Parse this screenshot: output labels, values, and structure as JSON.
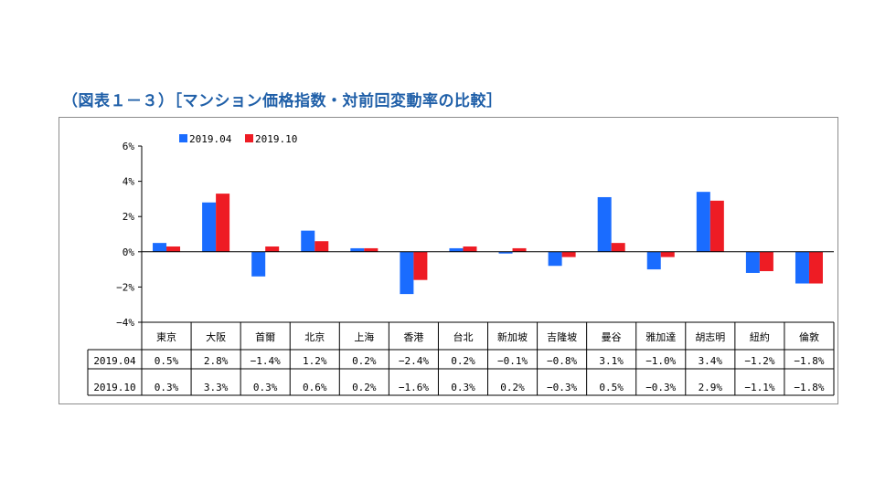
{
  "title": "（図表１－３）［マンション価格指数・対前回変動率の比較］",
  "colors": {
    "s1": "#1a6cff",
    "s2": "#ee1c24",
    "title": "#1f5fa8"
  },
  "chart_data": {
    "type": "bar",
    "categories": [
      "東京",
      "大阪",
      "首爾",
      "北京",
      "上海",
      "香港",
      "台北",
      "新加坡",
      "吉隆坡",
      "曼谷",
      "雅加達",
      "胡志明",
      "紐約",
      "倫敦"
    ],
    "series": [
      {
        "name": "2019.04",
        "values": [
          0.5,
          2.8,
          -1.4,
          1.2,
          0.2,
          -2.4,
          0.2,
          -0.1,
          -0.8,
          3.1,
          -1.0,
          3.4,
          -1.2,
          -1.8
        ],
        "labels": [
          "0.5%",
          "2.8%",
          "−1.4%",
          "1.2%",
          "0.2%",
          "−2.4%",
          "0.2%",
          "−0.1%",
          "−0.8%",
          "3.1%",
          "−1.0%",
          "3.4%",
          "−1.2%",
          "−1.8%"
        ]
      },
      {
        "name": "2019.10",
        "values": [
          0.3,
          3.3,
          0.3,
          0.6,
          0.2,
          -1.6,
          0.3,
          0.2,
          -0.3,
          0.5,
          -0.3,
          2.9,
          -1.1,
          -1.8
        ],
        "labels": [
          "0.3%",
          "3.3%",
          "0.3%",
          "0.6%",
          "0.2%",
          "−1.6%",
          "0.3%",
          "0.2%",
          "−0.3%",
          "0.5%",
          "−0.3%",
          "2.9%",
          "−1.1%",
          "−1.8%"
        ]
      }
    ],
    "ylim": [
      -4,
      6
    ],
    "yticks": [
      6,
      4,
      2,
      0,
      -2,
      -4
    ],
    "ytick_labels": [
      "6%",
      "4%",
      "2%",
      "0%",
      "−2%",
      "−4%"
    ],
    "legend_position": "top-left",
    "grid": false,
    "data_table": true
  }
}
